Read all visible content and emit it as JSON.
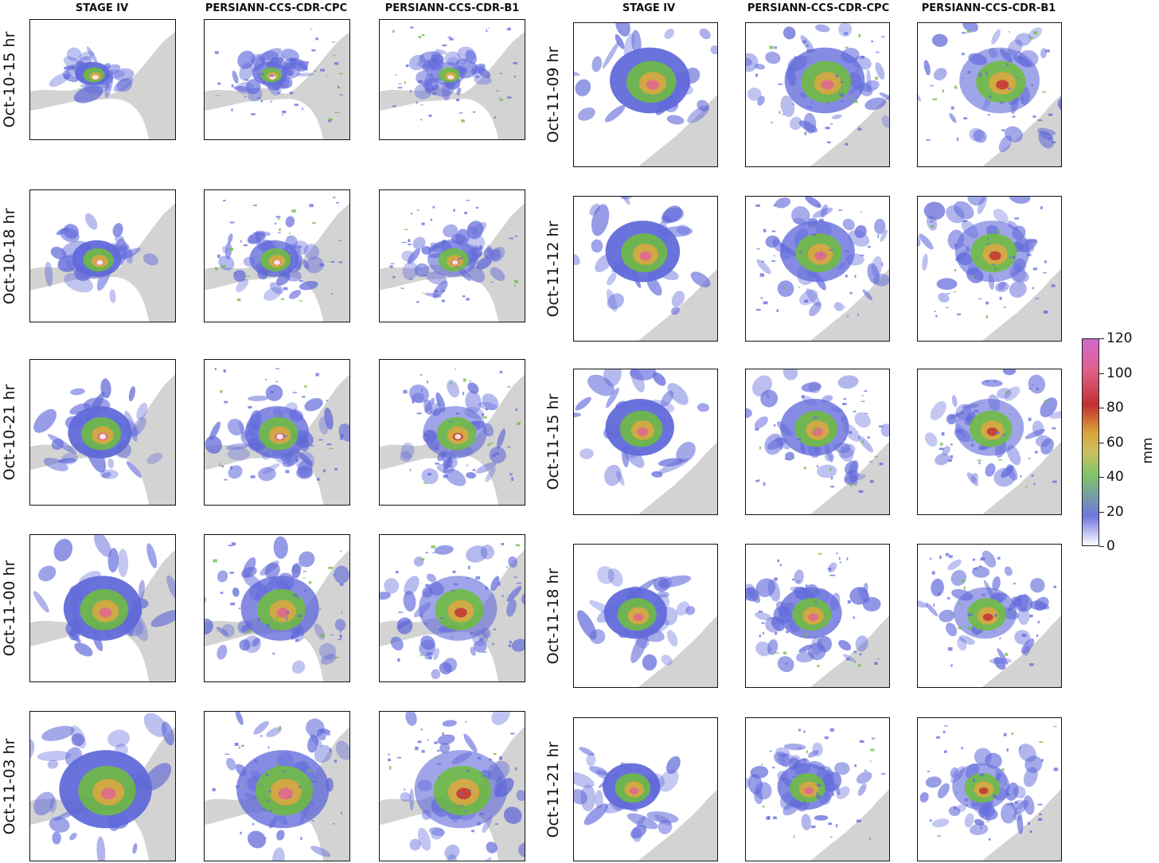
{
  "columns": [
    "STAGE IV",
    "PERSIANN-CCS-CDR-CPC",
    "PERSIANN-CCS-CDR-B1"
  ],
  "left_rows": [
    "Oct-10-15 hr",
    "Oct-10-18 hr",
    "Oct-10-21 hr",
    "Oct-11-00 hr",
    "Oct-11-03 hr"
  ],
  "right_rows": [
    "Oct-11-09 hr",
    "Oct-11-12 hr",
    "Oct-11-15 hr",
    "Oct-11-18 hr",
    "Oct-11-21 hr"
  ],
  "colorbar": {
    "unit": "mm",
    "range": [
      0,
      120
    ],
    "ticks": [
      "0",
      "20",
      "40",
      "60",
      "80",
      "100",
      "120"
    ],
    "colors": [
      "#ffffff",
      "#5a63d8",
      "#68b83a",
      "#d9a33a",
      "#c0302e",
      "#e0608a",
      "#d06ad0"
    ]
  },
  "colors": {
    "land": "#d3d3d3",
    "border": "#111111"
  },
  "chart_data": {
    "type": "heatmap",
    "title": "",
    "layout": "two blocks of 5 rows x 3 columns of precipitation maps",
    "xlabel": "",
    "ylabel": "",
    "colorbar_label": "mm",
    "colorbar_range": [
      0,
      120
    ]
  }
}
